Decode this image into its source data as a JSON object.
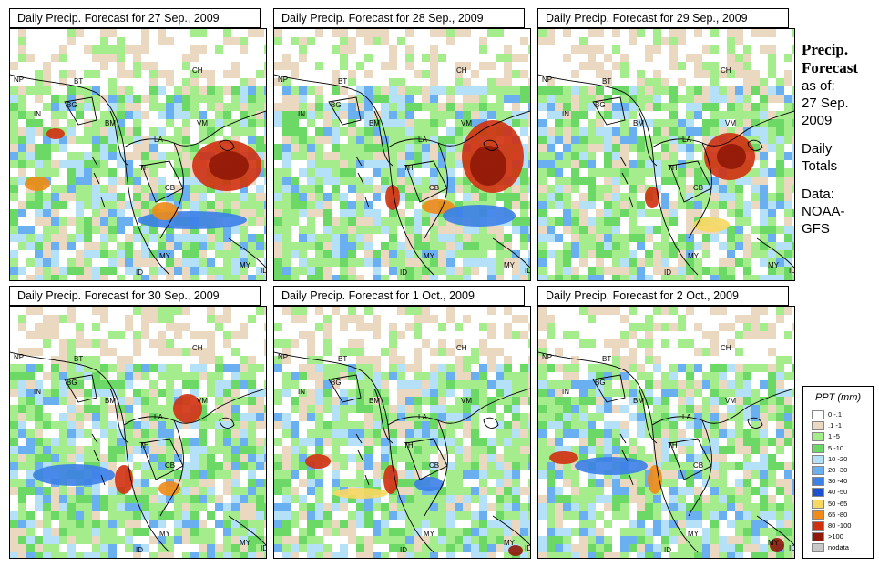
{
  "panels": [
    {
      "title": "Daily Precip. Forecast for  27 Sep., 2009"
    },
    {
      "title": "Daily Precip. Forecast for  28 Sep., 2009"
    },
    {
      "title": "Daily Precip. Forecast for  29 Sep., 2009"
    },
    {
      "title": "Daily Precip. Forecast for  30 Sep., 2009"
    },
    {
      "title": "Daily Precip. Forecast for  1 Oct., 2009"
    },
    {
      "title": "Daily Precip. Forecast for  2 Oct., 2009"
    }
  ],
  "map_labels": [
    "CH",
    "NP",
    "BT",
    "IN",
    "BG",
    "BM",
    "VM",
    "LA",
    "TH",
    "CB",
    "MY",
    "ID",
    "MY",
    "ID"
  ],
  "side": {
    "title_line1": "Precip.",
    "title_line2": "Forecast",
    "asof": "as of:",
    "date1": "27 Sep.",
    "date2": "2009",
    "daily": "Daily",
    "totals": "Totals",
    "data": "Data:",
    "source1": "NOAA-",
    "source2": "GFS"
  },
  "legend": {
    "title": "PPT (mm)",
    "items": [
      {
        "label": "0 -.1",
        "color": "#ffffff"
      },
      {
        "label": ".1 -1",
        "color": "#ead8c0"
      },
      {
        "label": "1 -5",
        "color": "#a4ec8c"
      },
      {
        "label": "5 -10",
        "color": "#6cd865"
      },
      {
        "label": "10 -20",
        "color": "#b4e0f8"
      },
      {
        "label": "20 -30",
        "color": "#6ab0f0"
      },
      {
        "label": "30 -40",
        "color": "#3c80e8"
      },
      {
        "label": "40 -50",
        "color": "#1c50d0"
      },
      {
        "label": "50 -65",
        "color": "#f8d860"
      },
      {
        "label": "65 -80",
        "color": "#f08a18"
      },
      {
        "label": "80 -100",
        "color": "#d03010"
      },
      {
        "label": ">100",
        "color": "#901808"
      },
      {
        "label": "nodata",
        "color": "#c8c8c8"
      }
    ]
  }
}
